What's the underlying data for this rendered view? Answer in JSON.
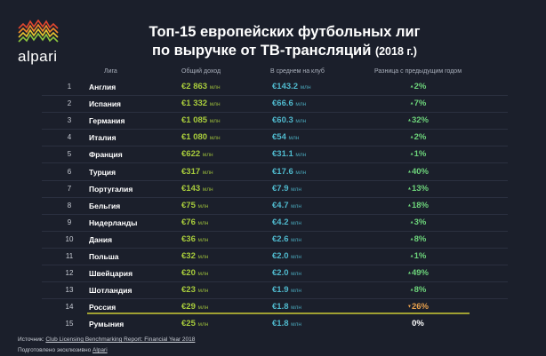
{
  "logo": {
    "text": "alpari"
  },
  "title": {
    "line1": "Топ-15 европейских футбольных лиг",
    "line2": "по выручке от ТВ-трансляций",
    "year": "(2018 г.)"
  },
  "headers": {
    "league": "Лига",
    "total": "Общий доход",
    "avg": "В среднем на клуб",
    "diff": "Разница с предыдущим годом"
  },
  "unit": "млн",
  "colors": {
    "total": "#a8cc3c",
    "avg": "#4fb8cc",
    "up": "#6cd27a",
    "down": "#e8a04c",
    "highlight": "#a0a032"
  },
  "rows": [
    {
      "n": "1",
      "league": "Англия",
      "total": "€2 863",
      "avg": "€143.2",
      "diff": "2%",
      "dir": "up"
    },
    {
      "n": "2",
      "league": "Испания",
      "total": "€1 332",
      "avg": "€66.6",
      "diff": "7%",
      "dir": "up"
    },
    {
      "n": "3",
      "league": "Германия",
      "total": "€1 085",
      "avg": "€60.3",
      "diff": "32%",
      "dir": "up"
    },
    {
      "n": "4",
      "league": "Италия",
      "total": "€1 080",
      "avg": "€54",
      "diff": "2%",
      "dir": "up"
    },
    {
      "n": "5",
      "league": "Франция",
      "total": "€622",
      "avg": "€31.1",
      "diff": "1%",
      "dir": "up"
    },
    {
      "n": "6",
      "league": "Турция",
      "total": "€317",
      "avg": "€17.6",
      "diff": "40%",
      "dir": "up"
    },
    {
      "n": "7",
      "league": "Португалия",
      "total": "€143",
      "avg": "€7.9",
      "diff": "13%",
      "dir": "up"
    },
    {
      "n": "8",
      "league": "Бельгия",
      "total": "€75",
      "avg": "€4.7",
      "diff": "18%",
      "dir": "up"
    },
    {
      "n": "9",
      "league": "Нидерланды",
      "total": "€76",
      "avg": "€4.2",
      "diff": "3%",
      "dir": "up"
    },
    {
      "n": "10",
      "league": "Дания",
      "total": "€36",
      "avg": "€2.6",
      "diff": "8%",
      "dir": "up"
    },
    {
      "n": "11",
      "league": "Польша",
      "total": "€32",
      "avg": "€2.0",
      "diff": "1%",
      "dir": "up"
    },
    {
      "n": "12",
      "league": "Швейцария",
      "total": "€20",
      "avg": "€2.0",
      "diff": "49%",
      "dir": "up"
    },
    {
      "n": "13",
      "league": "Шотландия",
      "total": "€23",
      "avg": "€1.9",
      "diff": "8%",
      "dir": "up"
    },
    {
      "n": "14",
      "league": "Россия",
      "total": "€29",
      "avg": "€1.8",
      "diff": "26%",
      "dir": "down"
    },
    {
      "n": "15",
      "league": "Румыния",
      "total": "€25",
      "avg": "€1.8",
      "diff": "0%",
      "dir": "none"
    }
  ],
  "footer": {
    "source_label": "Источник:",
    "source_link": "Club Licensing Benchmarking Report: Financial Year 2018",
    "prepared_label": "Подготовлено эксклюзивно",
    "prepared_link": "Alpari"
  }
}
